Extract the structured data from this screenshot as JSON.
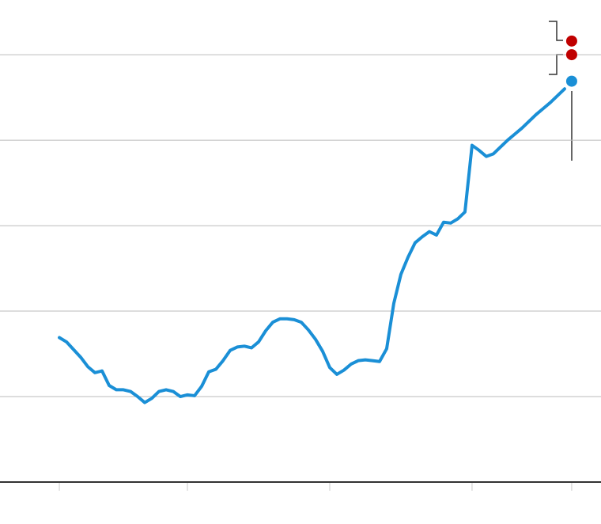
{
  "chart_data": {
    "type": "line",
    "x": [
      0,
      0.5,
      1,
      1.5,
      2,
      2.5,
      3,
      3.5,
      4,
      4.5,
      5,
      5.5,
      6,
      6.5,
      7,
      7.5,
      8,
      8.5,
      9,
      9.5,
      10,
      10.5,
      11,
      11.5,
      12,
      12.5,
      13,
      13.5,
      14,
      14.5,
      15,
      15.5,
      16,
      16.5,
      17,
      17.5,
      18,
      18.5,
      19,
      19.5,
      20,
      20.5,
      21,
      21.5,
      22,
      22.5,
      23,
      23.5,
      24,
      24.5,
      25,
      25.5,
      26,
      26.5,
      27,
      27.5,
      28,
      28.5,
      29,
      29.5,
      30,
      30.5,
      31,
      31.5,
      32,
      32.5,
      33,
      33.5,
      34,
      34.5,
      35,
      35.5
    ],
    "series": [
      {
        "color": "#1a8fd6",
        "values": [
          1.69,
          1.64,
          1.55,
          1.46,
          1.35,
          1.28,
          1.3,
          1.13,
          1.08,
          1.08,
          1.06,
          1.0,
          0.93,
          0.98,
          1.06,
          1.08,
          1.06,
          1.0,
          1.02,
          1.01,
          1.12,
          1.29,
          1.32,
          1.42,
          1.54,
          1.58,
          1.59,
          1.57,
          1.64,
          1.77,
          1.87,
          1.91,
          1.91,
          1.9,
          1.87,
          1.78,
          1.67,
          1.53,
          1.34,
          1.26,
          1.31,
          1.38,
          1.42,
          1.43,
          1.42,
          1.41,
          1.56,
          2.09,
          2.43,
          2.63,
          2.8,
          2.87,
          2.93,
          2.89,
          3.04,
          3.03,
          3.08,
          3.16,
          3.94,
          3.88,
          3.81,
          3.84,
          3.92,
          4.0,
          4.07,
          4.14,
          4.22,
          4.3,
          4.37,
          4.44,
          4.52,
          4.6
        ]
      }
    ],
    "points": [
      {
        "x": 36,
        "y": 4.69,
        "color": "#1a8fd6"
      },
      {
        "x": 36,
        "y": 5.0,
        "color": "#c00000"
      },
      {
        "x": 36,
        "y": 5.16,
        "color": "#c00000"
      }
    ],
    "xlim": [
      -4.17,
      38.06
    ],
    "xticks": [
      0,
      9,
      19,
      29,
      36
    ],
    "ylim": [
      0,
      5.64
    ],
    "yticks": [
      1,
      2,
      3,
      4,
      5
    ],
    "grid": true
  }
}
